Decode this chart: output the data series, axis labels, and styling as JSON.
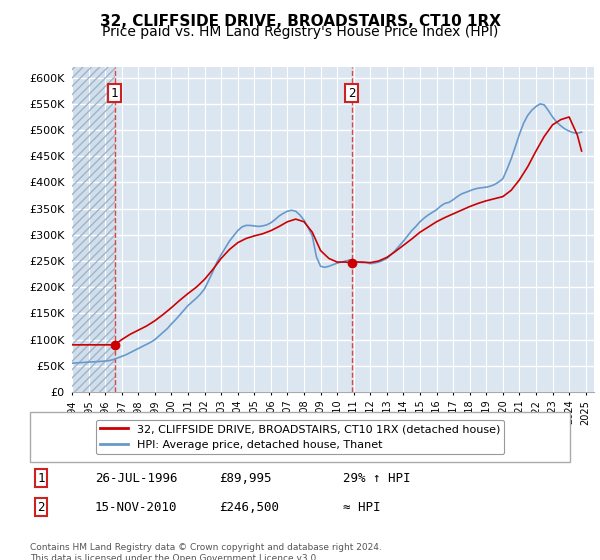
{
  "title": "32, CLIFFSIDE DRIVE, BROADSTAIRS, CT10 1RX",
  "subtitle": "Price paid vs. HM Land Registry's House Price Index (HPI)",
  "ylabel": "",
  "ylim": [
    0,
    620000
  ],
  "yticks": [
    0,
    50000,
    100000,
    150000,
    200000,
    250000,
    300000,
    350000,
    400000,
    450000,
    500000,
    550000,
    600000
  ],
  "xlim_start": 1994.0,
  "xlim_end": 2025.5,
  "background_color": "#dce6f1",
  "plot_bg_color": "#dce6f1",
  "hatch_color": "#c0cfe0",
  "grid_color": "#ffffff",
  "red_line_color": "#cc0000",
  "blue_line_color": "#6699cc",
  "sale1_x": 1996.57,
  "sale1_y": 89995,
  "sale2_x": 2010.88,
  "sale2_y": 246500,
  "vline_color": "#dd4444",
  "legend_label_red": "32, CLIFFSIDE DRIVE, BROADSTAIRS, CT10 1RX (detached house)",
  "legend_label_blue": "HPI: Average price, detached house, Thanet",
  "annotation1_label": "1",
  "annotation2_label": "2",
  "table_row1": [
    "1",
    "26-JUL-1996",
    "£89,995",
    "29% ↑ HPI"
  ],
  "table_row2": [
    "2",
    "15-NOV-2010",
    "£246,500",
    "≈ HPI"
  ],
  "footer": "Contains HM Land Registry data © Crown copyright and database right 2024.\nThis data is licensed under the Open Government Licence v3.0.",
  "title_fontsize": 11,
  "subtitle_fontsize": 10,
  "tick_fontsize": 8,
  "hpi_data_years": [
    1994.0,
    1994.25,
    1994.5,
    1994.75,
    1995.0,
    1995.25,
    1995.5,
    1995.75,
    1996.0,
    1996.25,
    1996.5,
    1996.75,
    1997.0,
    1997.25,
    1997.5,
    1997.75,
    1998.0,
    1998.25,
    1998.5,
    1998.75,
    1999.0,
    1999.25,
    1999.5,
    1999.75,
    2000.0,
    2000.25,
    2000.5,
    2000.75,
    2001.0,
    2001.25,
    2001.5,
    2001.75,
    2002.0,
    2002.25,
    2002.5,
    2002.75,
    2003.0,
    2003.25,
    2003.5,
    2003.75,
    2004.0,
    2004.25,
    2004.5,
    2004.75,
    2005.0,
    2005.25,
    2005.5,
    2005.75,
    2006.0,
    2006.25,
    2006.5,
    2006.75,
    2007.0,
    2007.25,
    2007.5,
    2007.75,
    2008.0,
    2008.25,
    2008.5,
    2008.75,
    2009.0,
    2009.25,
    2009.5,
    2009.75,
    2010.0,
    2010.25,
    2010.5,
    2010.75,
    2011.0,
    2011.25,
    2011.5,
    2011.75,
    2012.0,
    2012.25,
    2012.5,
    2012.75,
    2013.0,
    2013.25,
    2013.5,
    2013.75,
    2014.0,
    2014.25,
    2014.5,
    2014.75,
    2015.0,
    2015.25,
    2015.5,
    2015.75,
    2016.0,
    2016.25,
    2016.5,
    2016.75,
    2017.0,
    2017.25,
    2017.5,
    2017.75,
    2018.0,
    2018.25,
    2018.5,
    2018.75,
    2019.0,
    2019.25,
    2019.5,
    2019.75,
    2020.0,
    2020.25,
    2020.5,
    2020.75,
    2021.0,
    2021.25,
    2021.5,
    2021.75,
    2022.0,
    2022.25,
    2022.5,
    2022.75,
    2023.0,
    2023.25,
    2023.5,
    2023.75,
    2024.0,
    2024.25,
    2024.5,
    2024.75
  ],
  "hpi_values": [
    55000,
    55500,
    56000,
    56500,
    57000,
    57500,
    58000,
    58500,
    59000,
    60000,
    62000,
    65000,
    68000,
    71000,
    75000,
    79000,
    83000,
    87000,
    91000,
    95000,
    100000,
    107000,
    114000,
    121000,
    130000,
    138000,
    147000,
    156000,
    165000,
    172000,
    179000,
    187000,
    197000,
    213000,
    230000,
    248000,
    262000,
    275000,
    288000,
    298000,
    308000,
    315000,
    318000,
    318000,
    317000,
    316000,
    317000,
    319000,
    323000,
    329000,
    336000,
    341000,
    345000,
    347000,
    345000,
    338000,
    328000,
    314000,
    298000,
    258000,
    240000,
    238000,
    240000,
    243000,
    246000,
    248000,
    250000,
    252000,
    250000,
    248000,
    247000,
    247000,
    245000,
    246000,
    248000,
    251000,
    255000,
    262000,
    270000,
    279000,
    288000,
    298000,
    308000,
    316000,
    325000,
    332000,
    338000,
    343000,
    348000,
    355000,
    360000,
    362000,
    367000,
    373000,
    378000,
    381000,
    384000,
    387000,
    389000,
    390000,
    391000,
    393000,
    396000,
    401000,
    407000,
    425000,
    445000,
    468000,
    492000,
    513000,
    528000,
    538000,
    545000,
    550000,
    548000,
    537000,
    525000,
    515000,
    508000,
    502000,
    498000,
    495000,
    494000,
    496000
  ],
  "price_data_years": [
    1994.0,
    1994.5,
    1995.0,
    1995.5,
    1996.0,
    1996.57,
    1997.0,
    1997.5,
    1998.0,
    1998.5,
    1999.0,
    1999.5,
    2000.0,
    2000.5,
    2001.0,
    2001.5,
    2002.0,
    2002.5,
    2003.0,
    2003.5,
    2004.0,
    2004.5,
    2005.0,
    2005.5,
    2006.0,
    2006.5,
    2007.0,
    2007.5,
    2008.0,
    2008.5,
    2009.0,
    2009.5,
    2010.0,
    2010.5,
    2010.88,
    2011.0,
    2011.5,
    2012.0,
    2012.5,
    2013.0,
    2013.5,
    2014.0,
    2014.5,
    2015.0,
    2015.5,
    2016.0,
    2016.5,
    2017.0,
    2017.5,
    2018.0,
    2018.5,
    2019.0,
    2019.5,
    2020.0,
    2020.5,
    2021.0,
    2021.5,
    2022.0,
    2022.5,
    2023.0,
    2023.5,
    2024.0,
    2024.5,
    2024.75
  ],
  "price_values": [
    89995,
    89995,
    89995,
    89995,
    89995,
    89995,
    100000,
    110000,
    118000,
    126000,
    136000,
    148000,
    161000,
    175000,
    188000,
    200000,
    215000,
    234000,
    255000,
    272000,
    285000,
    293000,
    298000,
    302000,
    308000,
    316000,
    325000,
    330000,
    325000,
    305000,
    270000,
    255000,
    248000,
    248000,
    246500,
    248000,
    248000,
    247000,
    250000,
    257000,
    268000,
    280000,
    292000,
    305000,
    315000,
    325000,
    333000,
    340000,
    347000,
    354000,
    360000,
    365000,
    369000,
    373000,
    385000,
    405000,
    430000,
    460000,
    488000,
    510000,
    520000,
    525000,
    490000,
    460000
  ]
}
